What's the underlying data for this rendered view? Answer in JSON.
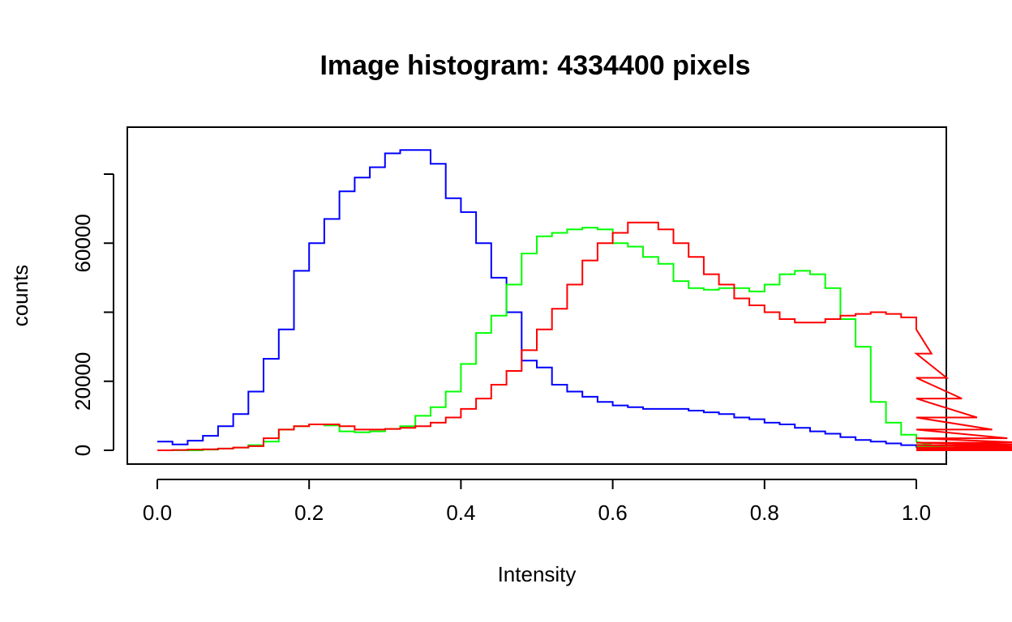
{
  "chart_data": {
    "type": "line",
    "title": "Image histogram: 4334400 pixels",
    "xlabel": "Intensity",
    "ylabel": "counts",
    "xlim": [
      0,
      1
    ],
    "ylim": [
      -3000,
      94000
    ],
    "xticks": [
      0.0,
      0.2,
      0.4,
      0.6,
      0.8,
      1.0
    ],
    "xtick_labels": [
      "0.0",
      "0.2",
      "0.4",
      "0.6",
      "0.8",
      "1.0"
    ],
    "yticks": [
      0,
      20000,
      40000,
      60000,
      80000
    ],
    "ytick_labels": [
      "0",
      "20000",
      "",
      "60000",
      ""
    ],
    "grid": false,
    "legend": "none",
    "step": "step-histogram",
    "bin_width": 0.02,
    "series": [
      {
        "color": "#0000ff",
        "values": [
          2500,
          1700,
          2800,
          4200,
          7000,
          10500,
          17000,
          26500,
          35000,
          52000,
          60000,
          67000,
          75000,
          79000,
          82000,
          86000,
          87000,
          87000,
          83000,
          73000,
          69000,
          60000,
          50000,
          40000,
          26000,
          24000,
          19000,
          17000,
          15500,
          14000,
          13000,
          12500,
          12000,
          12000,
          12000,
          11500,
          11000,
          10500,
          9500,
          9000,
          8000,
          7500,
          6500,
          5500,
          4800,
          3800,
          3000,
          2500,
          2000,
          1500,
          1000,
          700,
          600,
          400,
          300,
          200,
          150,
          100,
          80,
          50,
          30,
          20,
          10,
          5,
          0,
          0,
          0,
          0,
          0,
          0
        ]
      },
      {
        "color": "#00ff00",
        "values": [
          0,
          0,
          0,
          200,
          500,
          800,
          1500,
          2500,
          6000,
          7000,
          7500,
          7200,
          5500,
          5200,
          5500,
          6200,
          7000,
          10000,
          12500,
          17000,
          25000,
          34000,
          39000,
          48000,
          57000,
          62000,
          63000,
          64000,
          64500,
          64000,
          60000,
          59000,
          56000,
          54000,
          49000,
          47000,
          46500,
          47000,
          47000,
          46000,
          48000,
          51000,
          52000,
          51000,
          47000,
          38000,
          30000,
          14000,
          8000,
          4500,
          2500,
          1600,
          1000,
          800,
          500,
          300,
          200,
          100,
          50,
          30,
          10,
          0,
          0,
          0,
          0,
          0,
          0,
          0,
          0
        ]
      },
      {
        "color": "#ff0000",
        "values": [
          0,
          100,
          200,
          300,
          500,
          800,
          1200,
          3500,
          6000,
          7000,
          7500,
          7500,
          7000,
          6000,
          6000,
          6200,
          6500,
          7000,
          8000,
          9500,
          12000,
          15000,
          19000,
          23000,
          29000,
          35000,
          41000,
          48000,
          55000,
          60000,
          63000,
          66000,
          66000,
          64000,
          60000,
          56000,
          51000,
          48000,
          44000,
          42000,
          40000,
          38000,
          37000,
          37000,
          38000,
          39000,
          39500,
          40000,
          39500,
          38500,
          35000,
          28000,
          21000,
          15000,
          9500,
          6000,
          3500,
          2200,
          1500,
          800,
          400,
          200,
          100,
          0,
          0,
          0,
          0,
          0,
          0,
          0
        ]
      }
    ]
  }
}
